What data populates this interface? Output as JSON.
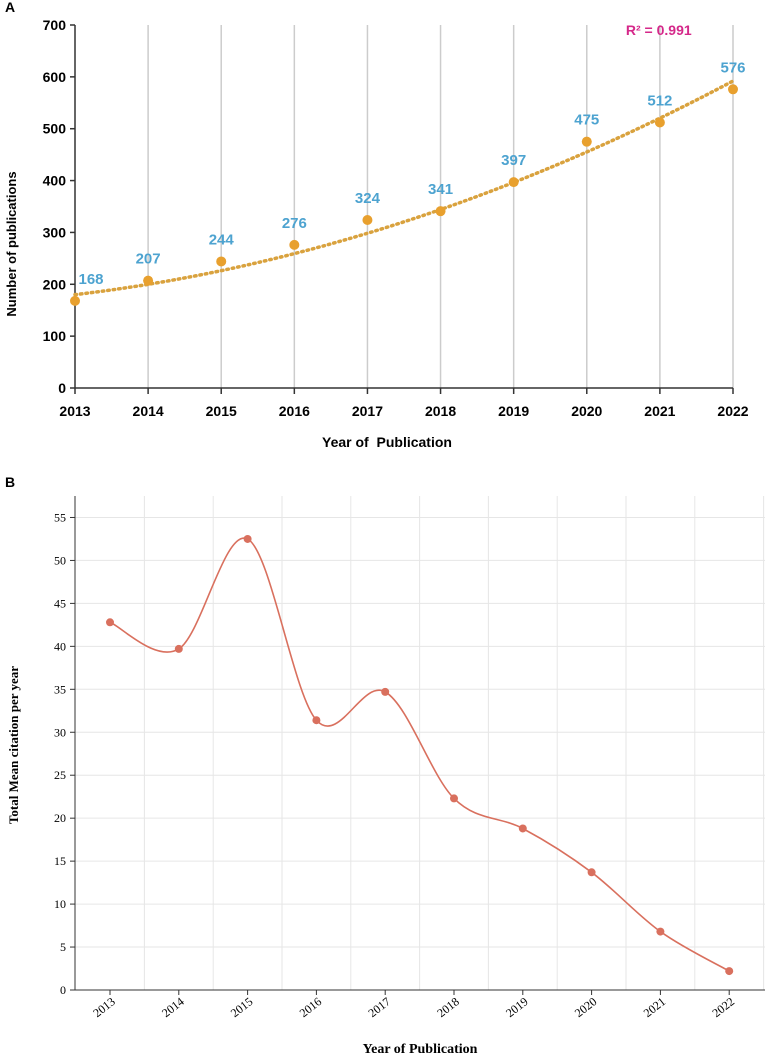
{
  "chart_data": [
    {
      "panel_label": "A",
      "type": "line",
      "title": "",
      "xlabel": "Year of  Publication",
      "ylabel": "Number of publications",
      "categories": [
        "2013",
        "2014",
        "2015",
        "2016",
        "2017",
        "2018",
        "2019",
        "2020",
        "2021",
        "2022"
      ],
      "series": [
        {
          "name": "Publications",
          "values": [
            168,
            207,
            244,
            276,
            324,
            341,
            397,
            475,
            512,
            576
          ]
        }
      ],
      "data_labels": [
        "168",
        "207",
        "244",
        "276",
        "324",
        "341",
        "397",
        "475",
        "512",
        "576"
      ],
      "trendline": {
        "type": "polynomial",
        "start": 180,
        "end": 592,
        "r2_label": "R² = 0.991"
      },
      "ylim": [
        0,
        700
      ],
      "yticks": [
        0,
        100,
        200,
        300,
        400,
        500,
        600,
        700
      ],
      "grid": "vertical",
      "colors": {
        "points": "#E8A02E",
        "trend": "#D9A23E",
        "labels": "#4DA3D0",
        "r2": "#D5288A",
        "grid": "#cccccc"
      }
    },
    {
      "panel_label": "B",
      "type": "line",
      "title": "",
      "xlabel": "Year of Publication",
      "ylabel": "Total Mean citation per year",
      "categories": [
        "2013",
        "2014",
        "2015",
        "2016",
        "2017",
        "2018",
        "2019",
        "2020",
        "2021",
        "2022"
      ],
      "series": [
        {
          "name": "Total Mean citation per year",
          "values": [
            42.8,
            39.7,
            52.5,
            31.4,
            34.7,
            22.3,
            18.8,
            13.7,
            6.8,
            2.2
          ]
        }
      ],
      "ylim": [
        0,
        57.5
      ],
      "yticks": [
        0,
        5,
        10,
        15,
        20,
        25,
        30,
        35,
        40,
        45,
        50,
        55
      ],
      "grid": "both",
      "smooth": true,
      "colors": {
        "line": "#D9705E",
        "points": "#D9705E",
        "grid": "#e6e6e6"
      }
    }
  ]
}
